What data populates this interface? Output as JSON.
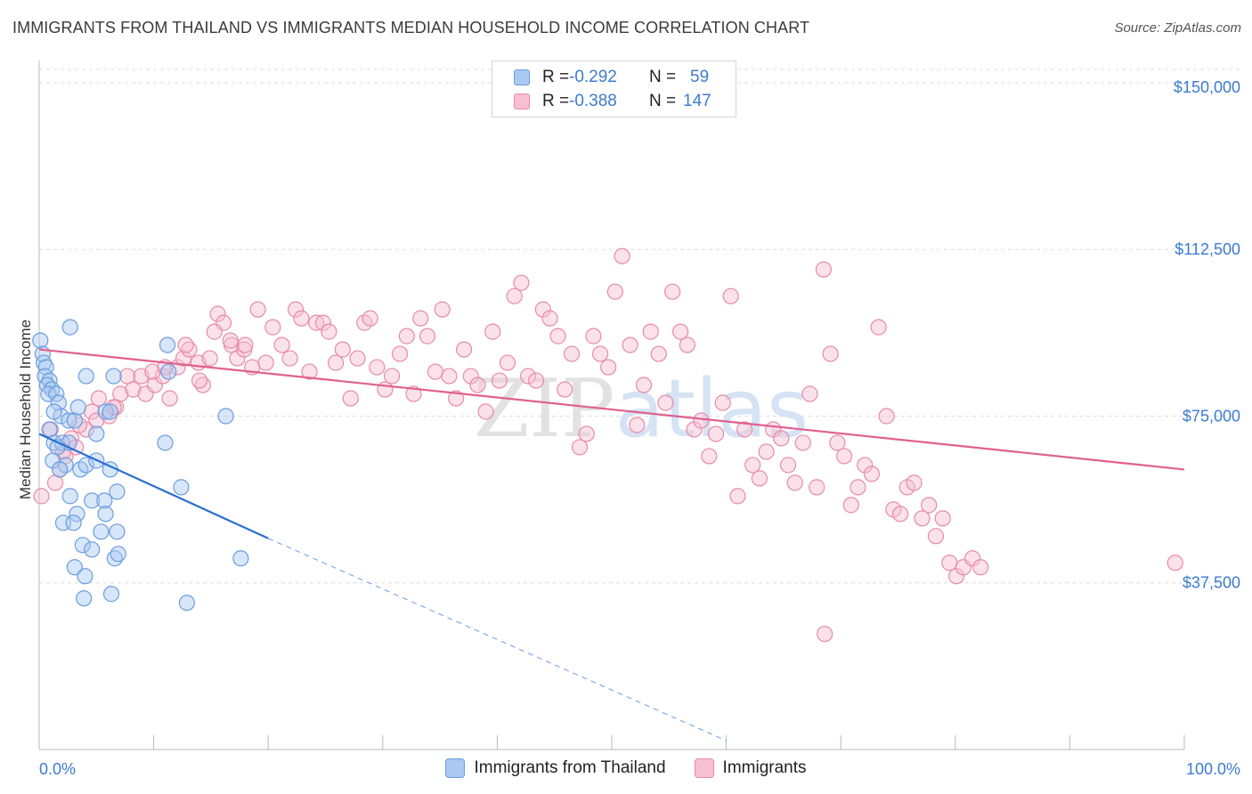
{
  "header": {
    "title": "IMMIGRANTS FROM THAILAND VS IMMIGRANTS MEDIAN HOUSEHOLD INCOME CORRELATION CHART",
    "source": "Source: ZipAtlas.com"
  },
  "watermark": "ZIPatlas",
  "legend": {
    "rows": [
      {
        "r_label": "R =",
        "r_value": "-0.292",
        "n_label": "N =",
        "n_value": "59",
        "color": "#a9c8f2",
        "border": "#6a9de0"
      },
      {
        "r_label": "R =",
        "r_value": "-0.388",
        "n_label": "N =",
        "n_value": "147",
        "color": "#f7bfd0",
        "border": "#e88aa8"
      }
    ]
  },
  "bottom_legend": [
    {
      "label": "Immigrants from Thailand",
      "color": "#a9c8f2",
      "border": "#6a9de0"
    },
    {
      "label": "Immigrants",
      "color": "#f7bfd0",
      "border": "#e88aa8"
    }
  ],
  "chart_data": {
    "type": "scatter",
    "title": "IMMIGRANTS FROM THAILAND VS IMMIGRANTS MEDIAN HOUSEHOLD INCOME CORRELATION CHART",
    "xlabel": "",
    "ylabel": "Median Household Income",
    "xlim": [
      0,
      100
    ],
    "ylim": [
      0,
      153000
    ],
    "x_tick_labels": [
      "0.0%",
      "100.0%"
    ],
    "y_ticks": [
      37500,
      75000,
      112500,
      150000
    ],
    "y_tick_labels": [
      "$37,500",
      "$75,000",
      "$112,500",
      "$150,000"
    ],
    "grid": true,
    "colors": {
      "thailand": "#3d7bd1",
      "immigrants": "#e0608e"
    },
    "series": [
      {
        "name": "Immigrants from Thailand",
        "color": "#6a9de0",
        "trend": {
          "x": [
            0,
            20
          ],
          "y": [
            71000,
            47500
          ],
          "dashed_to": [
            60,
            2000
          ]
        },
        "points": [
          [
            0.1,
            92
          ],
          [
            0.3,
            89
          ],
          [
            0.4,
            87
          ],
          [
            0.6,
            86
          ],
          [
            0.5,
            84
          ],
          [
            0.9,
            83
          ],
          [
            0.7,
            82
          ],
          [
            1.1,
            81
          ],
          [
            0.8,
            80
          ],
          [
            1.5,
            80
          ],
          [
            1.7,
            78
          ],
          [
            1.9,
            75
          ],
          [
            2.6,
            74
          ],
          [
            3.1,
            74
          ],
          [
            1.3,
            76
          ],
          [
            3.4,
            77
          ],
          [
            0.9,
            72
          ],
          [
            1.3,
            69
          ],
          [
            2.0,
            69
          ],
          [
            2.6,
            69
          ],
          [
            1.6,
            68
          ],
          [
            1.2,
            65
          ],
          [
            2.3,
            64
          ],
          [
            3.6,
            63
          ],
          [
            4.1,
            64
          ],
          [
            5.0,
            65
          ],
          [
            6.2,
            63
          ],
          [
            2.7,
            57
          ],
          [
            4.6,
            56
          ],
          [
            5.7,
            56
          ],
          [
            6.8,
            58
          ],
          [
            3.3,
            53
          ],
          [
            5.8,
            53
          ],
          [
            2.1,
            51
          ],
          [
            3.0,
            51
          ],
          [
            5.4,
            49
          ],
          [
            6.8,
            49
          ],
          [
            3.8,
            46
          ],
          [
            4.6,
            45
          ],
          [
            6.6,
            43
          ],
          [
            6.9,
            44
          ],
          [
            3.1,
            41
          ],
          [
            4.0,
            39
          ],
          [
            6.3,
            35
          ],
          [
            3.9,
            34
          ],
          [
            12.9,
            33
          ],
          [
            2.7,
            95
          ],
          [
            6.5,
            84
          ],
          [
            4.1,
            84
          ],
          [
            11.2,
            91
          ],
          [
            11.3,
            85
          ],
          [
            11.0,
            69
          ],
          [
            12.4,
            59
          ],
          [
            5.0,
            71
          ],
          [
            5.8,
            76
          ],
          [
            6.2,
            76
          ],
          [
            16.3,
            75
          ],
          [
            17.6,
            43
          ],
          [
            1.8,
            63
          ]
        ]
      },
      {
        "name": "Immigrants",
        "color": "#e88aa8",
        "trend": {
          "x": [
            0,
            100
          ],
          "y": [
            90000,
            63000
          ]
        },
        "points": [
          [
            0.2,
            57
          ],
          [
            1.4,
            60
          ],
          [
            1.8,
            63
          ],
          [
            2.3,
            66
          ],
          [
            2.8,
            70
          ],
          [
            3.2,
            68
          ],
          [
            4.1,
            72
          ],
          [
            4.6,
            76
          ],
          [
            5.2,
            79
          ],
          [
            6.1,
            75
          ],
          [
            6.7,
            77
          ],
          [
            7.1,
            80
          ],
          [
            8.2,
            81
          ],
          [
            8.9,
            84
          ],
          [
            9.3,
            80
          ],
          [
            10.1,
            82
          ],
          [
            10.8,
            84
          ],
          [
            11.4,
            79
          ],
          [
            12.1,
            86
          ],
          [
            12.6,
            88
          ],
          [
            13.1,
            90
          ],
          [
            13.9,
            87
          ],
          [
            14.3,
            82
          ],
          [
            14.9,
            88
          ],
          [
            15.6,
            98
          ],
          [
            16.1,
            96
          ],
          [
            16.8,
            91
          ],
          [
            17.3,
            88
          ],
          [
            17.9,
            90
          ],
          [
            18.6,
            86
          ],
          [
            19.1,
            99
          ],
          [
            19.8,
            87
          ],
          [
            20.4,
            95
          ],
          [
            21.2,
            91
          ],
          [
            21.9,
            88
          ],
          [
            22.4,
            99
          ],
          [
            22.9,
            97
          ],
          [
            23.6,
            85
          ],
          [
            24.2,
            96
          ],
          [
            24.8,
            96
          ],
          [
            25.3,
            94
          ],
          [
            25.9,
            87
          ],
          [
            26.5,
            90
          ],
          [
            27.2,
            79
          ],
          [
            27.8,
            88
          ],
          [
            28.4,
            96
          ],
          [
            28.9,
            97
          ],
          [
            29.5,
            86
          ],
          [
            30.2,
            81
          ],
          [
            30.8,
            84
          ],
          [
            31.5,
            89
          ],
          [
            32.1,
            93
          ],
          [
            32.7,
            80
          ],
          [
            33.3,
            97
          ],
          [
            33.9,
            93
          ],
          [
            34.6,
            85
          ],
          [
            35.2,
            99
          ],
          [
            35.8,
            84
          ],
          [
            36.4,
            79
          ],
          [
            37.1,
            90
          ],
          [
            37.7,
            84
          ],
          [
            38.3,
            82
          ],
          [
            39.0,
            76
          ],
          [
            39.6,
            94
          ],
          [
            40.2,
            83
          ],
          [
            40.9,
            87
          ],
          [
            41.5,
            102
          ],
          [
            42.1,
            105
          ],
          [
            42.7,
            84
          ],
          [
            43.4,
            83
          ],
          [
            44.0,
            99
          ],
          [
            44.6,
            97
          ],
          [
            45.3,
            93
          ],
          [
            45.9,
            81
          ],
          [
            46.5,
            89
          ],
          [
            47.2,
            68
          ],
          [
            47.8,
            71
          ],
          [
            48.4,
            93
          ],
          [
            49.0,
            89
          ],
          [
            49.7,
            86
          ],
          [
            50.3,
            103
          ],
          [
            50.9,
            111
          ],
          [
            51.6,
            91
          ],
          [
            52.2,
            73
          ],
          [
            52.8,
            82
          ],
          [
            53.4,
            94
          ],
          [
            54.1,
            89
          ],
          [
            54.7,
            78
          ],
          [
            55.3,
            103
          ],
          [
            56.0,
            94
          ],
          [
            56.6,
            91
          ],
          [
            57.2,
            72
          ],
          [
            57.8,
            74
          ],
          [
            58.5,
            66
          ],
          [
            59.1,
            71
          ],
          [
            59.7,
            78
          ],
          [
            60.4,
            102
          ],
          [
            61.0,
            57
          ],
          [
            61.6,
            72
          ],
          [
            62.3,
            64
          ],
          [
            62.9,
            61
          ],
          [
            63.5,
            67
          ],
          [
            64.1,
            72
          ],
          [
            64.8,
            70
          ],
          [
            65.4,
            64
          ],
          [
            66.0,
            60
          ],
          [
            66.7,
            69
          ],
          [
            67.3,
            80
          ],
          [
            67.9,
            59
          ],
          [
            68.5,
            108
          ],
          [
            69.1,
            89
          ],
          [
            69.7,
            69
          ],
          [
            70.3,
            66
          ],
          [
            70.9,
            55
          ],
          [
            71.5,
            59
          ],
          [
            72.1,
            64
          ],
          [
            72.7,
            62
          ],
          [
            73.3,
            95
          ],
          [
            74.0,
            75
          ],
          [
            74.6,
            54
          ],
          [
            75.2,
            53
          ],
          [
            75.8,
            59
          ],
          [
            76.4,
            60
          ],
          [
            77.1,
            52
          ],
          [
            77.7,
            55
          ],
          [
            78.3,
            48
          ],
          [
            78.9,
            52
          ],
          [
            79.5,
            42
          ],
          [
            80.1,
            39
          ],
          [
            80.7,
            41
          ],
          [
            81.5,
            43
          ],
          [
            82.2,
            41
          ],
          [
            68.6,
            26
          ],
          [
            99.2,
            42
          ],
          [
            1.0,
            72
          ],
          [
            2.1,
            67
          ],
          [
            3.5,
            73
          ],
          [
            5.0,
            74
          ],
          [
            6.5,
            77
          ],
          [
            7.7,
            84
          ],
          [
            9.9,
            85
          ],
          [
            11.0,
            86
          ],
          [
            12.8,
            91
          ],
          [
            14.0,
            83
          ],
          [
            15.3,
            94
          ],
          [
            16.7,
            92
          ],
          [
            18.0,
            91
          ]
        ]
      }
    ]
  }
}
